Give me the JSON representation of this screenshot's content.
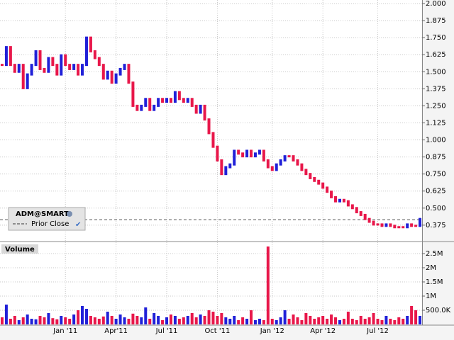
{
  "chart_data": [
    {
      "type": "line",
      "categories": [
        null,
        null,
        null,
        null,
        null,
        null,
        null,
        null,
        null,
        null,
        null,
        null,
        null,
        null,
        null,
        "Jan '11",
        null,
        null,
        null,
        null,
        null,
        null,
        null,
        null,
        null,
        null,
        null,
        "Apr'11",
        null,
        null,
        null,
        null,
        null,
        null,
        null,
        null,
        null,
        null,
        null,
        "Jul '11",
        null,
        null,
        null,
        null,
        null,
        null,
        null,
        null,
        null,
        null,
        null,
        "Oct '11",
        null,
        null,
        null,
        null,
        null,
        null,
        null,
        null,
        null,
        null,
        null,
        null,
        "Jan '12",
        null,
        null,
        null,
        null,
        null,
        null,
        null,
        null,
        null,
        null,
        null,
        "Apr '12",
        null,
        null,
        null,
        null,
        null,
        null,
        null,
        null,
        null,
        null,
        null,
        null,
        "Jul '12",
        null,
        null,
        null,
        null,
        null,
        null,
        null,
        null,
        null,
        null
      ],
      "series": [
        {
          "name": "ADM@SMART",
          "color": "#e8174a",
          "up_color": "#2020d8",
          "values": [
            1.55,
            1.68,
            1.55,
            1.5,
            1.55,
            1.38,
            1.48,
            1.55,
            1.65,
            1.52,
            1.5,
            1.6,
            1.55,
            1.48,
            1.62,
            1.55,
            1.52,
            1.55,
            1.48,
            1.55,
            1.75,
            1.65,
            1.6,
            1.55,
            1.45,
            1.5,
            1.42,
            1.48,
            1.52,
            1.55,
            1.42,
            1.25,
            1.22,
            1.25,
            1.3,
            1.22,
            1.25,
            1.3,
            1.28,
            1.3,
            1.28,
            1.35,
            1.3,
            1.28,
            1.3,
            1.25,
            1.2,
            1.25,
            1.15,
            1.05,
            0.95,
            0.85,
            0.75,
            0.8,
            0.82,
            0.92,
            0.9,
            0.88,
            0.92,
            0.88,
            0.9,
            0.92,
            0.85,
            0.8,
            0.78,
            0.82,
            0.85,
            0.88,
            0.88,
            0.85,
            0.82,
            0.78,
            0.75,
            0.72,
            0.7,
            0.68,
            0.65,
            0.62,
            0.58,
            0.55,
            0.56,
            0.55,
            0.52,
            0.5,
            0.47,
            0.45,
            0.42,
            0.4,
            0.38,
            0.38,
            0.37,
            0.38,
            0.37,
            0.36,
            0.36,
            0.36,
            0.38,
            0.37,
            0.37,
            0.42
          ]
        }
      ],
      "prior_close": {
        "label": "Prior Close",
        "value": 0.415
      },
      "ylim": [
        0.26,
        2.026
      ],
      "yticks": [
        {
          "value": 2.0,
          "label": "2.000"
        },
        {
          "value": 1.875,
          "label": "1.875"
        },
        {
          "value": 1.75,
          "label": "1.750"
        },
        {
          "value": 1.625,
          "label": "1.625"
        },
        {
          "value": 1.5,
          "label": "1.500"
        },
        {
          "value": 1.375,
          "label": "1.375"
        },
        {
          "value": 1.25,
          "label": "1.250"
        },
        {
          "value": 1.125,
          "label": "1.125"
        },
        {
          "value": 1.0,
          "label": "1.000"
        },
        {
          "value": 0.875,
          "label": "0.875"
        },
        {
          "value": 0.75,
          "label": "0.750"
        },
        {
          "value": 0.625,
          "label": "0.625"
        },
        {
          "value": 0.5,
          "label": "0.500"
        },
        {
          "value": 0.375,
          "label": "0.375"
        }
      ],
      "grid": true
    },
    {
      "type": "bar",
      "title": "Volume",
      "color": "#e8174a",
      "values": [
        250000,
        700000,
        200000,
        300000,
        150000,
        250000,
        350000,
        200000,
        180000,
        300000,
        250000,
        400000,
        220000,
        180000,
        300000,
        250000,
        200000,
        350000,
        500000,
        650000,
        550000,
        300000,
        250000,
        200000,
        280000,
        450000,
        300000,
        200000,
        350000,
        250000,
        200000,
        380000,
        300000,
        250000,
        600000,
        200000,
        400000,
        300000,
        150000,
        250000,
        350000,
        300000,
        200000,
        250000,
        300000,
        400000,
        250000,
        350000,
        300000,
        500000,
        450000,
        300000,
        400000,
        250000,
        200000,
        300000,
        150000,
        250000,
        200000,
        500000,
        150000,
        200000,
        150000,
        2750000,
        200000,
        150000,
        250000,
        500000,
        200000,
        350000,
        250000,
        150000,
        400000,
        300000,
        200000,
        250000,
        300000,
        200000,
        350000,
        250000,
        150000,
        200000,
        450000,
        200000,
        150000,
        300000,
        200000,
        250000,
        400000,
        200000,
        150000,
        300000,
        200000,
        150000,
        250000,
        200000,
        300000,
        650000,
        500000,
        300000
      ],
      "ylim": [
        0,
        2850000
      ],
      "yticks": [
        {
          "value": 2500000,
          "label": "2.5M"
        },
        {
          "value": 2000000,
          "label": "2M"
        },
        {
          "value": 1500000,
          "label": "1.5M"
        },
        {
          "value": 1000000,
          "label": "1M"
        },
        {
          "value": 500000,
          "label": "500.0K"
        }
      ],
      "grid": true
    }
  ]
}
